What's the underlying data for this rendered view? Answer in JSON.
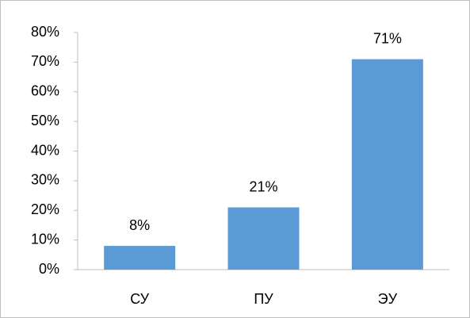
{
  "chart_data": {
    "type": "bar",
    "categories": [
      "СУ",
      "ПУ",
      "ЭУ"
    ],
    "values": [
      8,
      21,
      71
    ],
    "value_labels": [
      "8%",
      "21%",
      "71%"
    ],
    "color": "#5b9bd5",
    "ylim": [
      0,
      80
    ],
    "yticks": [
      {
        "value": 0,
        "label": "0%"
      },
      {
        "value": 10,
        "label": "10%"
      },
      {
        "value": 20,
        "label": "20%"
      },
      {
        "value": 30,
        "label": "30%"
      },
      {
        "value": 40,
        "label": "40%"
      },
      {
        "value": 50,
        "label": "50%"
      },
      {
        "value": 60,
        "label": "60%"
      },
      {
        "value": 70,
        "label": "70%"
      },
      {
        "value": 80,
        "label": "80%"
      }
    ],
    "grid": false
  }
}
